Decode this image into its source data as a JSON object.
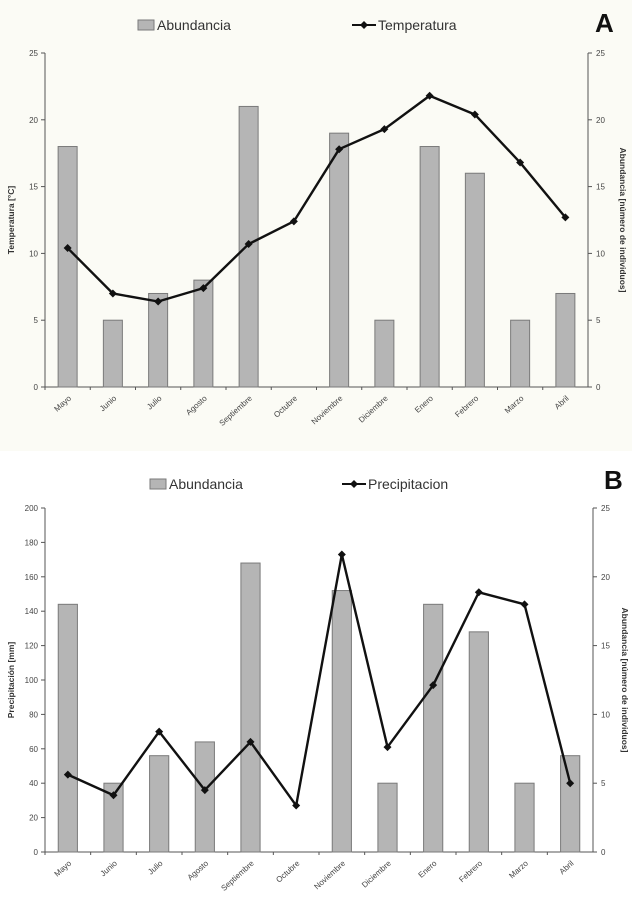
{
  "panels": [
    {
      "letter": "A"
    },
    {
      "letter": "B"
    }
  ],
  "chart_data": [
    {
      "type": "bar",
      "categories": [
        "Mayo",
        "Junio",
        "Julio",
        "Agosto",
        "Septiembre",
        "Octubre",
        "Noviembre",
        "Diciembre",
        "Enero",
        "Febrero",
        "Marzo",
        "Abril"
      ],
      "series": [
        {
          "name": "Abundancia",
          "kind": "bar",
          "axis": "right",
          "color": "#b5b5b5",
          "values": [
            18,
            5,
            7,
            8,
            21,
            0,
            19,
            5,
            18,
            16,
            5,
            7
          ]
        },
        {
          "name": "Temperatura",
          "kind": "line",
          "axis": "left",
          "color": "#111111",
          "values": [
            10.4,
            7.0,
            6.4,
            7.4,
            10.7,
            12.4,
            17.8,
            19.3,
            21.8,
            20.4,
            16.8,
            12.7
          ]
        }
      ],
      "ylabel": "Temperatura [°C]",
      "ylabel_right": "Abundancia [número de individuos]",
      "ylim": [
        0,
        25
      ],
      "ylim_right": [
        0,
        25
      ],
      "yticks": [
        "0",
        "5",
        "10",
        "15",
        "20",
        "25"
      ],
      "yticks_right": [
        "0",
        "5",
        "10",
        "15",
        "20",
        "25"
      ],
      "legend": "top-center",
      "grid": false
    },
    {
      "type": "bar",
      "categories": [
        "Mayo",
        "Junio",
        "Julio",
        "Agosto",
        "Septiembre",
        "Octubre",
        "Noviembre",
        "Diciembre",
        "Enero",
        "Febrero",
        "Marzo",
        "Abril"
      ],
      "series": [
        {
          "name": "Abundancia",
          "kind": "bar",
          "axis": "right",
          "color": "#b5b5b5",
          "values": [
            18,
            5,
            7,
            8,
            21,
            0,
            19,
            5,
            18,
            16,
            5,
            7
          ]
        },
        {
          "name": "Precipitacion",
          "kind": "line",
          "axis": "left",
          "color": "#111111",
          "values": [
            45,
            33,
            70,
            36,
            64,
            27,
            173,
            61,
            97,
            151,
            144,
            40
          ]
        }
      ],
      "ylabel": "Precipitación [mm]",
      "ylabel_right": "Abundancia [número de individuos]",
      "ylim": [
        0,
        200
      ],
      "ylim_right": [
        0,
        25
      ],
      "yticks": [
        "0",
        "20",
        "40",
        "60",
        "80",
        "100",
        "120",
        "140",
        "160",
        "180",
        "200"
      ],
      "yticks_right": [
        "0",
        "5",
        "10",
        "15",
        "20",
        "25"
      ],
      "legend": "top-center",
      "grid": false
    }
  ]
}
